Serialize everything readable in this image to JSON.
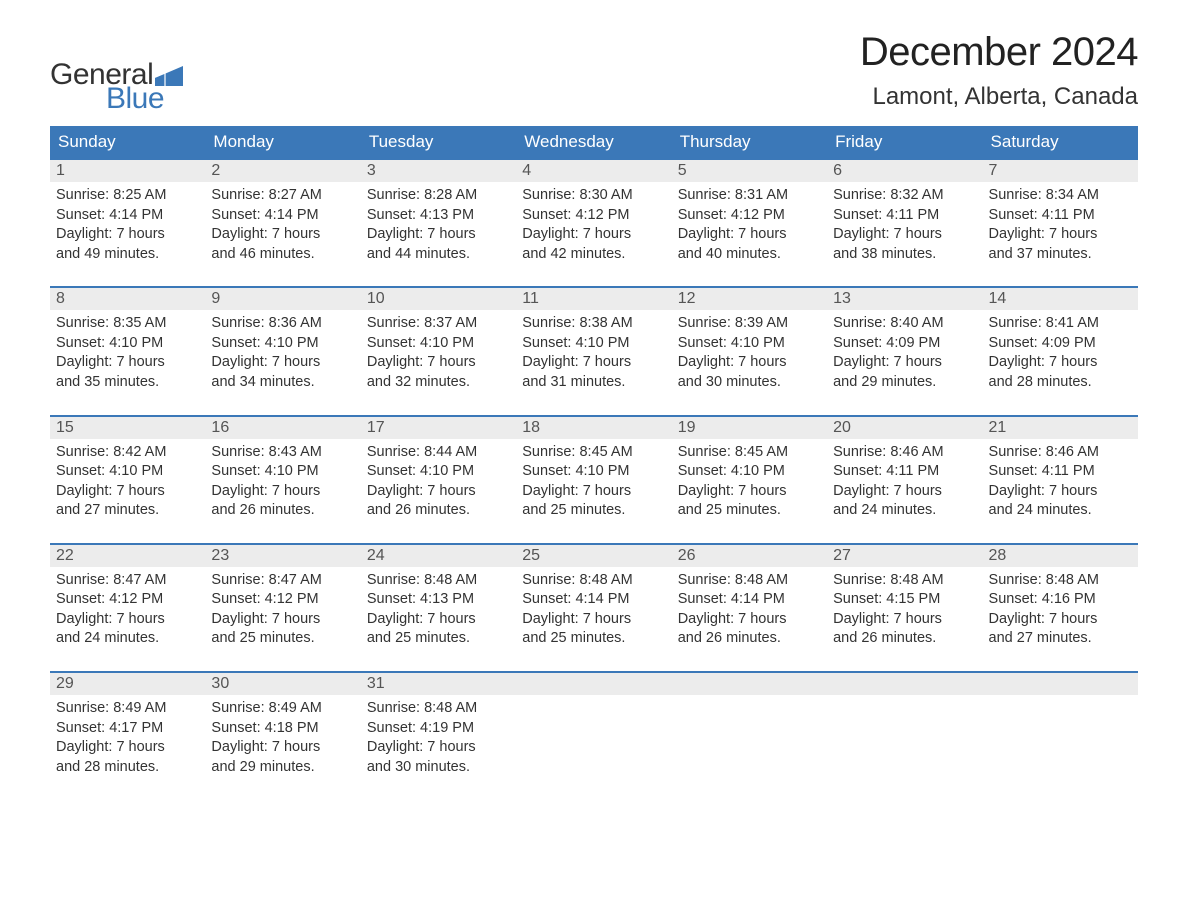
{
  "logo": {
    "word1": "General",
    "word2": "Blue",
    "text_color_dark": "#333333",
    "text_color_blue": "#3b78b8",
    "flag_color": "#3b78b8"
  },
  "title": {
    "month_year": "December 2024",
    "location": "Lamont, Alberta, Canada"
  },
  "colors": {
    "header_bg": "#3b78b8",
    "header_text": "#ffffff",
    "row_border": "#3b78b8",
    "daynum_bg": "#ececec",
    "daynum_text": "#555555",
    "body_text": "#333333",
    "page_bg": "#ffffff"
  },
  "typography": {
    "title_fontsize": 40,
    "location_fontsize": 24,
    "header_fontsize": 17,
    "cell_fontsize": 14.5,
    "logo_fontsize": 30
  },
  "day_headers": [
    "Sunday",
    "Monday",
    "Tuesday",
    "Wednesday",
    "Thursday",
    "Friday",
    "Saturday"
  ],
  "weeks": [
    [
      {
        "n": "1",
        "sr": "Sunrise: 8:25 AM",
        "ss": "Sunset: 4:14 PM",
        "d1": "Daylight: 7 hours",
        "d2": "and 49 minutes."
      },
      {
        "n": "2",
        "sr": "Sunrise: 8:27 AM",
        "ss": "Sunset: 4:14 PM",
        "d1": "Daylight: 7 hours",
        "d2": "and 46 minutes."
      },
      {
        "n": "3",
        "sr": "Sunrise: 8:28 AM",
        "ss": "Sunset: 4:13 PM",
        "d1": "Daylight: 7 hours",
        "d2": "and 44 minutes."
      },
      {
        "n": "4",
        "sr": "Sunrise: 8:30 AM",
        "ss": "Sunset: 4:12 PM",
        "d1": "Daylight: 7 hours",
        "d2": "and 42 minutes."
      },
      {
        "n": "5",
        "sr": "Sunrise: 8:31 AM",
        "ss": "Sunset: 4:12 PM",
        "d1": "Daylight: 7 hours",
        "d2": "and 40 minutes."
      },
      {
        "n": "6",
        "sr": "Sunrise: 8:32 AM",
        "ss": "Sunset: 4:11 PM",
        "d1": "Daylight: 7 hours",
        "d2": "and 38 minutes."
      },
      {
        "n": "7",
        "sr": "Sunrise: 8:34 AM",
        "ss": "Sunset: 4:11 PM",
        "d1": "Daylight: 7 hours",
        "d2": "and 37 minutes."
      }
    ],
    [
      {
        "n": "8",
        "sr": "Sunrise: 8:35 AM",
        "ss": "Sunset: 4:10 PM",
        "d1": "Daylight: 7 hours",
        "d2": "and 35 minutes."
      },
      {
        "n": "9",
        "sr": "Sunrise: 8:36 AM",
        "ss": "Sunset: 4:10 PM",
        "d1": "Daylight: 7 hours",
        "d2": "and 34 minutes."
      },
      {
        "n": "10",
        "sr": "Sunrise: 8:37 AM",
        "ss": "Sunset: 4:10 PM",
        "d1": "Daylight: 7 hours",
        "d2": "and 32 minutes."
      },
      {
        "n": "11",
        "sr": "Sunrise: 8:38 AM",
        "ss": "Sunset: 4:10 PM",
        "d1": "Daylight: 7 hours",
        "d2": "and 31 minutes."
      },
      {
        "n": "12",
        "sr": "Sunrise: 8:39 AM",
        "ss": "Sunset: 4:10 PM",
        "d1": "Daylight: 7 hours",
        "d2": "and 30 minutes."
      },
      {
        "n": "13",
        "sr": "Sunrise: 8:40 AM",
        "ss": "Sunset: 4:09 PM",
        "d1": "Daylight: 7 hours",
        "d2": "and 29 minutes."
      },
      {
        "n": "14",
        "sr": "Sunrise: 8:41 AM",
        "ss": "Sunset: 4:09 PM",
        "d1": "Daylight: 7 hours",
        "d2": "and 28 minutes."
      }
    ],
    [
      {
        "n": "15",
        "sr": "Sunrise: 8:42 AM",
        "ss": "Sunset: 4:10 PM",
        "d1": "Daylight: 7 hours",
        "d2": "and 27 minutes."
      },
      {
        "n": "16",
        "sr": "Sunrise: 8:43 AM",
        "ss": "Sunset: 4:10 PM",
        "d1": "Daylight: 7 hours",
        "d2": "and 26 minutes."
      },
      {
        "n": "17",
        "sr": "Sunrise: 8:44 AM",
        "ss": "Sunset: 4:10 PM",
        "d1": "Daylight: 7 hours",
        "d2": "and 26 minutes."
      },
      {
        "n": "18",
        "sr": "Sunrise: 8:45 AM",
        "ss": "Sunset: 4:10 PM",
        "d1": "Daylight: 7 hours",
        "d2": "and 25 minutes."
      },
      {
        "n": "19",
        "sr": "Sunrise: 8:45 AM",
        "ss": "Sunset: 4:10 PM",
        "d1": "Daylight: 7 hours",
        "d2": "and 25 minutes."
      },
      {
        "n": "20",
        "sr": "Sunrise: 8:46 AM",
        "ss": "Sunset: 4:11 PM",
        "d1": "Daylight: 7 hours",
        "d2": "and 24 minutes."
      },
      {
        "n": "21",
        "sr": "Sunrise: 8:46 AM",
        "ss": "Sunset: 4:11 PM",
        "d1": "Daylight: 7 hours",
        "d2": "and 24 minutes."
      }
    ],
    [
      {
        "n": "22",
        "sr": "Sunrise: 8:47 AM",
        "ss": "Sunset: 4:12 PM",
        "d1": "Daylight: 7 hours",
        "d2": "and 24 minutes."
      },
      {
        "n": "23",
        "sr": "Sunrise: 8:47 AM",
        "ss": "Sunset: 4:12 PM",
        "d1": "Daylight: 7 hours",
        "d2": "and 25 minutes."
      },
      {
        "n": "24",
        "sr": "Sunrise: 8:48 AM",
        "ss": "Sunset: 4:13 PM",
        "d1": "Daylight: 7 hours",
        "d2": "and 25 minutes."
      },
      {
        "n": "25",
        "sr": "Sunrise: 8:48 AM",
        "ss": "Sunset: 4:14 PM",
        "d1": "Daylight: 7 hours",
        "d2": "and 25 minutes."
      },
      {
        "n": "26",
        "sr": "Sunrise: 8:48 AM",
        "ss": "Sunset: 4:14 PM",
        "d1": "Daylight: 7 hours",
        "d2": "and 26 minutes."
      },
      {
        "n": "27",
        "sr": "Sunrise: 8:48 AM",
        "ss": "Sunset: 4:15 PM",
        "d1": "Daylight: 7 hours",
        "d2": "and 26 minutes."
      },
      {
        "n": "28",
        "sr": "Sunrise: 8:48 AM",
        "ss": "Sunset: 4:16 PM",
        "d1": "Daylight: 7 hours",
        "d2": "and 27 minutes."
      }
    ],
    [
      {
        "n": "29",
        "sr": "Sunrise: 8:49 AM",
        "ss": "Sunset: 4:17 PM",
        "d1": "Daylight: 7 hours",
        "d2": "and 28 minutes."
      },
      {
        "n": "30",
        "sr": "Sunrise: 8:49 AM",
        "ss": "Sunset: 4:18 PM",
        "d1": "Daylight: 7 hours",
        "d2": "and 29 minutes."
      },
      {
        "n": "31",
        "sr": "Sunrise: 8:48 AM",
        "ss": "Sunset: 4:19 PM",
        "d1": "Daylight: 7 hours",
        "d2": "and 30 minutes."
      },
      null,
      null,
      null,
      null
    ]
  ]
}
